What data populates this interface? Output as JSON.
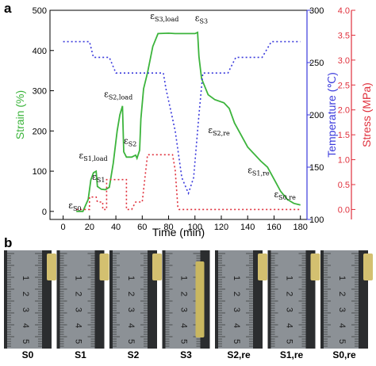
{
  "panel_a_label": "a",
  "panel_b_label": "b",
  "chart_data": {
    "type": "line",
    "xlabel": "Time (min)",
    "ylabel_left": "Strain (%)",
    "ylabel_right1": "Temperature (℃)",
    "ylabel_right2": "Stress (MPa)",
    "xlim": [
      -10,
      185
    ],
    "xticks": [
      0,
      20,
      40,
      60,
      80,
      100,
      120,
      140,
      160,
      180
    ],
    "ylim_left": [
      -20,
      500
    ],
    "yticks_left": [
      0,
      100,
      200,
      300,
      400,
      500
    ],
    "ylim_temp": [
      100,
      300
    ],
    "yticks_temp": [
      100,
      150,
      200,
      250,
      300
    ],
    "ylim_stress": [
      -0.2,
      4.0
    ],
    "yticks_stress": [
      0.0,
      0.5,
      1.0,
      1.5,
      2.0,
      2.5,
      3.0,
      3.5,
      4.0
    ],
    "colors": {
      "strain": "#3cb43c",
      "temperature": "#3a3adc",
      "stress": "#e0303c"
    },
    "series": [
      {
        "key": "strain",
        "values": [
          [
            10,
            0
          ],
          [
            15,
            0
          ],
          [
            19,
            30
          ],
          [
            21,
            78
          ],
          [
            23,
            96
          ],
          [
            25,
            100
          ],
          [
            26,
            62
          ],
          [
            29,
            55
          ],
          [
            32,
            54
          ],
          [
            35,
            60
          ],
          [
            38,
            120
          ],
          [
            41,
            200
          ],
          [
            43,
            240
          ],
          [
            45,
            262
          ],
          [
            46,
            148
          ],
          [
            48,
            135
          ],
          [
            52,
            135
          ],
          [
            55,
            140
          ],
          [
            56,
            132
          ],
          [
            58,
            152
          ],
          [
            59,
            230
          ],
          [
            61,
            305
          ],
          [
            64,
            345
          ],
          [
            68,
            410
          ],
          [
            72,
            442
          ],
          [
            80,
            443
          ],
          [
            85,
            442
          ],
          [
            93,
            442
          ],
          [
            100,
            442
          ],
          [
            102,
            445
          ],
          [
            103,
            385
          ],
          [
            105,
            330
          ],
          [
            110,
            290
          ],
          [
            115,
            278
          ],
          [
            122,
            270
          ],
          [
            126,
            256
          ],
          [
            130,
            220
          ],
          [
            140,
            160
          ],
          [
            150,
            125
          ],
          [
            155,
            110
          ],
          [
            160,
            80
          ],
          [
            165,
            50
          ],
          [
            170,
            30
          ],
          [
            175,
            20
          ],
          [
            180,
            16
          ]
        ]
      },
      {
        "key": "temperature",
        "values": [
          [
            0,
            270
          ],
          [
            20,
            270
          ],
          [
            23,
            255
          ],
          [
            35,
            255
          ],
          [
            40,
            240
          ],
          [
            55,
            240
          ],
          [
            60,
            240
          ],
          [
            65,
            240
          ],
          [
            70,
            240
          ],
          [
            76,
            240
          ],
          [
            78,
            225
          ],
          [
            85,
            185
          ],
          [
            90,
            140
          ],
          [
            95,
            125
          ],
          [
            99,
            140
          ],
          [
            103,
            200
          ],
          [
            106,
            240
          ],
          [
            125,
            240
          ],
          [
            131,
            255
          ],
          [
            151,
            255
          ],
          [
            158,
            270
          ],
          [
            180,
            270
          ]
        ]
      },
      {
        "key": "stress",
        "values": [
          [
            10,
            0.0
          ],
          [
            20,
            0.0
          ],
          [
            20,
            0.25
          ],
          [
            25,
            0.25
          ],
          [
            26,
            0.15
          ],
          [
            30,
            0.15
          ],
          [
            30,
            0.0
          ],
          [
            33,
            0.0
          ],
          [
            33,
            0.6
          ],
          [
            48,
            0.6
          ],
          [
            48,
            0.0
          ],
          [
            52,
            0.0
          ],
          [
            55,
            0.15
          ],
          [
            60,
            0.15
          ],
          [
            64,
            1.1
          ],
          [
            83,
            1.1
          ],
          [
            85,
            0.8
          ],
          [
            87,
            0.05
          ],
          [
            88,
            0.0
          ],
          [
            180,
            0.0
          ]
        ]
      }
    ],
    "annotations": [
      {
        "base": "ε",
        "sub": "S0",
        "x": 4,
        "y": 8
      },
      {
        "base": "ε",
        "sub": "S1,load",
        "x": 12,
        "y": 132
      },
      {
        "base": "ε",
        "sub": "S1",
        "x": 22,
        "y": 78
      },
      {
        "base": "ε",
        "sub": "S2,load",
        "x": 31,
        "y": 284
      },
      {
        "base": "ε",
        "sub": "S2",
        "x": 46,
        "y": 168
      },
      {
        "base": "ε",
        "sub": "S3,load",
        "x": 66,
        "y": 478
      },
      {
        "base": "ε",
        "sub": "S3",
        "x": 100,
        "y": 473
      },
      {
        "base": "ε",
        "sub": "S2,re",
        "x": 110,
        "y": 195
      },
      {
        "base": "ε",
        "sub": "S1,re",
        "x": 140,
        "y": 95
      },
      {
        "base": "ε",
        "sub": "S0,re",
        "x": 160,
        "y": 35
      }
    ]
  },
  "photos": [
    {
      "label": "S0",
      "strip": "right-short"
    },
    {
      "label": "S1",
      "strip": "right-short"
    },
    {
      "label": "S2",
      "strip": "right-short"
    },
    {
      "label": "S3",
      "strip": "long"
    },
    {
      "label": "S2,re",
      "strip": "right-short"
    },
    {
      "label": "S1,re",
      "strip": "right-short"
    },
    {
      "label": "S0,re",
      "strip": "right-short"
    }
  ]
}
